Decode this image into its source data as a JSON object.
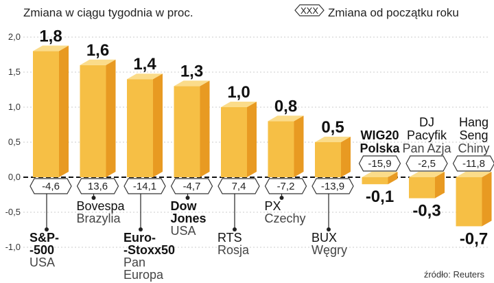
{
  "chart_data": {
    "type": "bar",
    "title": "Zmiana w ciągu tygodnia w proc.",
    "legend": {
      "symbol": "XXX",
      "label": "Zmiana od początku roku"
    },
    "source": "źródło: Reuters",
    "ylim": [
      -1.0,
      2.0
    ],
    "yticks": [
      "2,0",
      "1,5",
      "1,0",
      "0,5",
      "0,0",
      "-0,5",
      "-1,0"
    ],
    "yticks_values": [
      2.0,
      1.5,
      1.0,
      0.5,
      0.0,
      -0.5,
      -1.0
    ],
    "grid": true,
    "series": [
      {
        "values": [
          1.8,
          1.6,
          1.4,
          1.3,
          1.0,
          0.8,
          0.5,
          -0.1,
          -0.3,
          -0.7
        ],
        "labels": [
          "1,8",
          "1,6",
          "1,4",
          "1,3",
          "1,0",
          "0,8",
          "0,5",
          "-0,1",
          "-0,3",
          "-0,7"
        ]
      }
    ],
    "ytd_change": [
      "-4,6",
      "13,6",
      "-14,1",
      "-4,7",
      "7,4",
      "-7,2",
      "-13,9",
      "-15,9",
      "-2,5",
      "-11,8"
    ],
    "categories": [
      {
        "name": [
          "S&P-",
          "-500"
        ],
        "region": [
          "USA"
        ],
        "bold": true
      },
      {
        "name": [
          "Bovespa"
        ],
        "region": [
          "Brazylia"
        ],
        "bold": false
      },
      {
        "name": [
          "Euro-",
          "-Stoxx50"
        ],
        "region": [
          "Pan",
          "Europa"
        ],
        "bold": true
      },
      {
        "name": [
          "Dow",
          "Jones"
        ],
        "region": [
          "USA"
        ],
        "bold": true
      },
      {
        "name": [
          "RTS"
        ],
        "region": [
          "Rosja"
        ],
        "bold": false
      },
      {
        "name": [
          "PX"
        ],
        "region": [
          "Czechy"
        ],
        "bold": false
      },
      {
        "name": [
          "BUX"
        ],
        "region": [
          "Węgry"
        ],
        "bold": false
      },
      {
        "name": [
          "WIG20",
          "Polska"
        ],
        "region": [],
        "bold": true
      },
      {
        "name": [
          "DJ",
          "Pacyfik"
        ],
        "region": [
          "Pan Azja"
        ],
        "bold": false
      },
      {
        "name": [
          "Hang",
          "Seng"
        ],
        "region": [
          "Chiny"
        ],
        "bold": false
      }
    ],
    "colors": {
      "front": "#f6bf45",
      "side": "#e89a22",
      "top": "#fbdc8a",
      "axis": "#111111"
    }
  }
}
